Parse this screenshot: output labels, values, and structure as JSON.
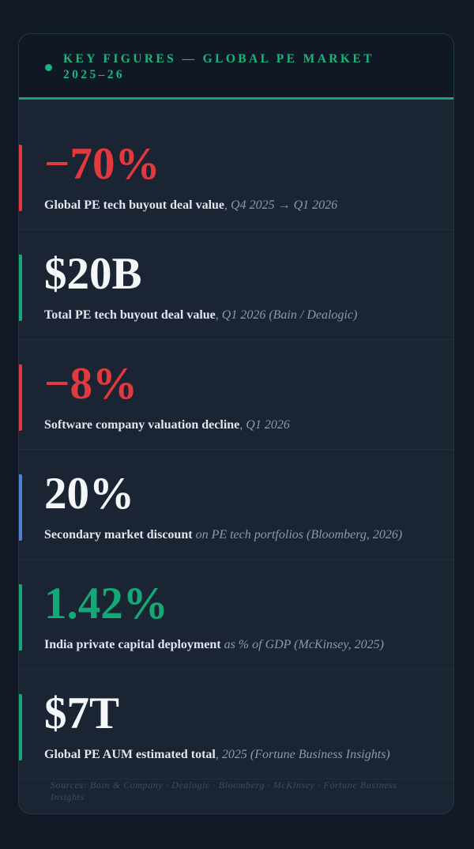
{
  "header": {
    "title": "Key Figures — Global PE Market 2025–26",
    "dot_color": "#19b57c"
  },
  "stats": [
    {
      "value": "−70%",
      "label": "Global PE tech buyout deal value",
      "context": ", Q4 2025 → Q1 2026",
      "accent": "red"
    },
    {
      "value": "$20B",
      "label": "Total PE tech buyout deal value",
      "context": ", Q1 2026 (Bain / Dealogic)",
      "accent": "green"
    },
    {
      "value": "−8%",
      "label": "Software company valuation decline",
      "context": ", Q1 2026",
      "accent": "red"
    },
    {
      "value": "20%",
      "label": "Secondary market discount",
      "context": " on PE tech portfolios (Bloomberg, 2026)",
      "accent": "blue"
    },
    {
      "value": "1.42%",
      "label": "India private capital deployment",
      "context": " as % of GDP (McKinsey, 2025)",
      "accent": "green"
    },
    {
      "value": "$7T",
      "label": "Global PE AUM estimated total",
      "context": ", 2025 (Fortune Business Insights)",
      "accent": "green"
    }
  ],
  "footer": {
    "sources": "Sources: Bain & Company · Dealogic · Bloomberg · McKinsey · Fortune Business Insights"
  },
  "colors": {
    "background": "#111a26",
    "card": "#1a2433",
    "accent_green": "#14a874",
    "accent_red": "#e0393e",
    "accent_blue": "#4f7fd6"
  }
}
